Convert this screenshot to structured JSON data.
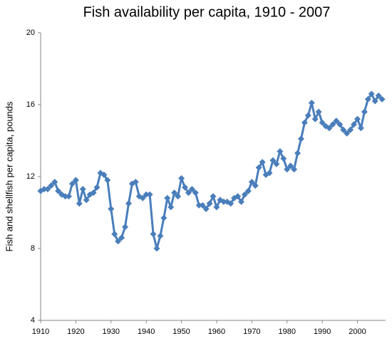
{
  "chart_data": {
    "type": "line",
    "title": "Fish availability per capita, 1910 - 2007",
    "y_label": "Fish and shellfish per capita, pounds",
    "x": [
      1910,
      1911,
      1912,
      1913,
      1914,
      1915,
      1916,
      1917,
      1918,
      1919,
      1920,
      1921,
      1922,
      1923,
      1924,
      1925,
      1926,
      1927,
      1928,
      1929,
      1930,
      1931,
      1932,
      1933,
      1934,
      1935,
      1936,
      1937,
      1938,
      1939,
      1940,
      1941,
      1942,
      1943,
      1944,
      1945,
      1946,
      1947,
      1948,
      1949,
      1950,
      1951,
      1952,
      1953,
      1954,
      1955,
      1956,
      1957,
      1958,
      1959,
      1960,
      1961,
      1962,
      1963,
      1964,
      1965,
      1966,
      1967,
      1968,
      1969,
      1970,
      1971,
      1972,
      1973,
      1974,
      1975,
      1976,
      1977,
      1978,
      1979,
      1980,
      1981,
      1982,
      1983,
      1984,
      1985,
      1986,
      1987,
      1988,
      1989,
      1990,
      1991,
      1992,
      1993,
      1994,
      1995,
      1996,
      1997,
      1998,
      1999,
      2000,
      2001,
      2002,
      2003,
      2004,
      2005,
      2006,
      2007
    ],
    "series": [
      {
        "color": "#4a7ebb",
        "values": [
          11.2,
          11.3,
          11.3,
          11.5,
          11.7,
          11.2,
          11.0,
          10.9,
          10.9,
          11.6,
          11.8,
          10.5,
          11.3,
          10.7,
          11.0,
          11.1,
          11.4,
          12.2,
          12.1,
          11.8,
          10.2,
          8.8,
          8.4,
          8.6,
          9.2,
          10.5,
          11.6,
          11.7,
          10.9,
          10.8,
          11.0,
          11.0,
          8.8,
          8.0,
          8.7,
          9.7,
          10.8,
          10.3,
          11.1,
          10.9,
          11.9,
          11.4,
          11.1,
          11.3,
          11.1,
          10.4,
          10.4,
          10.2,
          10.5,
          10.9,
          10.3,
          10.7,
          10.6,
          10.6,
          10.5,
          10.8,
          10.9,
          10.6,
          11.0,
          11.2,
          11.7,
          11.5,
          12.5,
          12.8,
          12.1,
          12.2,
          12.9,
          12.7,
          13.4,
          13.0,
          12.4,
          12.6,
          12.4,
          13.3,
          14.1,
          15.0,
          15.4,
          16.1,
          15.2,
          15.6,
          15.0,
          14.8,
          14.7,
          14.9,
          15.1,
          14.9,
          14.6,
          14.4,
          14.6,
          14.9,
          15.2,
          14.7,
          15.6,
          16.3,
          16.6,
          16.2,
          16.5,
          16.3
        ]
      }
    ],
    "xlim": [
      1910,
      2008
    ],
    "xticks": [
      1910,
      1920,
      1930,
      1940,
      1950,
      1960,
      1970,
      1980,
      1990,
      2000
    ],
    "ylim": [
      4,
      20
    ],
    "yticks": [
      4,
      8,
      12,
      16,
      20
    ],
    "grid": false
  }
}
